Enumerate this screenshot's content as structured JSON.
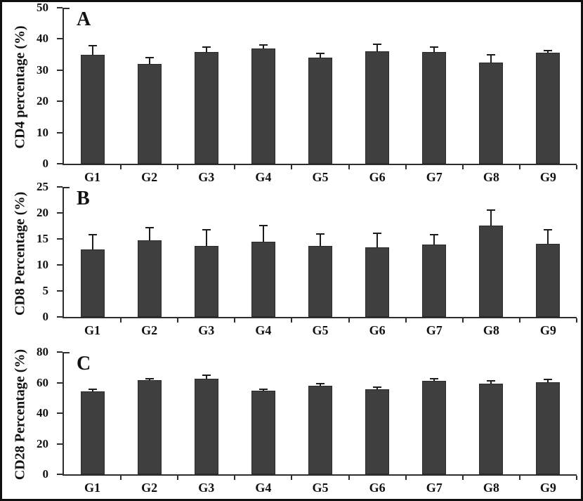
{
  "figure": {
    "background_color": "#ffffff",
    "border_color": "#101010",
    "bar_color": "#3f3f3f",
    "bar_border_color": "#2a2a2a",
    "axis_color": "#2e2e2e",
    "text_color": "#111111"
  },
  "chart_data": [
    {
      "type": "bar",
      "panel": "A",
      "title": "",
      "xlabel": "",
      "ylabel": "CD4 percentage (%)",
      "ylim": [
        0,
        50
      ],
      "yticks": [
        0,
        10,
        20,
        30,
        40,
        50
      ],
      "grid": false,
      "legend": "none",
      "error_bars": true,
      "categories": [
        "G1",
        "G2",
        "G3",
        "G4",
        "G5",
        "G6",
        "G7",
        "G8",
        "G9"
      ],
      "values": [
        35.0,
        31.9,
        35.7,
        37.0,
        33.9,
        36.0,
        35.7,
        32.4,
        35.5
      ],
      "errors": [
        2.8,
        2.0,
        1.7,
        1.0,
        1.5,
        2.2,
        1.6,
        2.4,
        0.8
      ]
    },
    {
      "type": "bar",
      "panel": "B",
      "title": "",
      "xlabel": "",
      "ylabel": "CD8 Percentage (%)",
      "ylim": [
        0,
        25
      ],
      "yticks": [
        0,
        5,
        10,
        15,
        20,
        25
      ],
      "grid": false,
      "legend": "none",
      "error_bars": true,
      "categories": [
        "G1",
        "G2",
        "G3",
        "G4",
        "G5",
        "G6",
        "G7",
        "G8",
        "G9"
      ],
      "values": [
        13.0,
        14.7,
        13.6,
        14.5,
        13.7,
        13.4,
        13.9,
        17.6,
        14.1
      ],
      "errors": [
        2.8,
        2.5,
        3.1,
        3.1,
        2.3,
        2.7,
        1.9,
        2.9,
        2.7
      ]
    },
    {
      "type": "bar",
      "panel": "C",
      "title": "",
      "xlabel": "",
      "ylabel": "CD28 Percentage (%)",
      "ylim": [
        0,
        80
      ],
      "yticks": [
        0,
        20,
        40,
        60,
        80
      ],
      "grid": false,
      "legend": "none",
      "error_bars": true,
      "categories": [
        "G1",
        "G2",
        "G3",
        "G4",
        "G5",
        "G6",
        "G7",
        "G8",
        "G9"
      ],
      "values": [
        54.2,
        61.5,
        62.4,
        54.6,
        58.0,
        55.6,
        61.0,
        59.3,
        60.3
      ],
      "errors": [
        1.4,
        0.9,
        2.2,
        1.1,
        1.5,
        1.6,
        1.5,
        1.9,
        1.7
      ]
    }
  ]
}
